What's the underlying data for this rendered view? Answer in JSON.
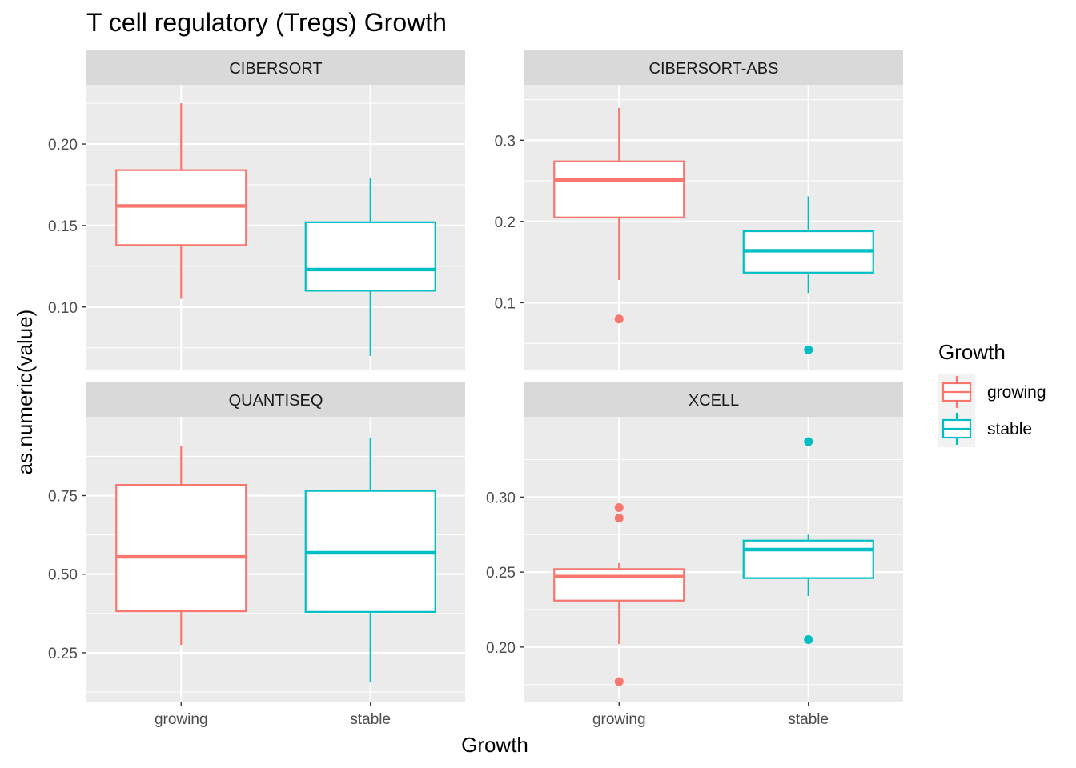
{
  "title": "T cell regulatory (Tregs) Growth",
  "xlabel": "Growth",
  "ylabel": "as.numeric(value)",
  "legend": {
    "title": "Growth",
    "position": "right",
    "items": [
      {
        "label": "growing",
        "color": "#F8766D"
      },
      {
        "label": "stable",
        "color": "#00BFC4"
      }
    ]
  },
  "chart_data": [
    {
      "type": "boxplot",
      "facet": "CIBERSORT",
      "categories": [
        "growing",
        "stable"
      ],
      "ylim": [
        0.0665,
        0.2285
      ],
      "yticks": [
        0.1,
        0.15,
        0.2
      ],
      "ytick_labels": [
        "0.10",
        "0.15",
        "0.20"
      ],
      "grid": true,
      "boxes": [
        {
          "category": "growing",
          "color": "#F8766D",
          "whisker_low": 0.105,
          "q1": 0.138,
          "median": 0.162,
          "q3": 0.184,
          "whisker_high": 0.225,
          "outliers": []
        },
        {
          "category": "stable",
          "color": "#00BFC4",
          "whisker_low": 0.07,
          "q1": 0.11,
          "median": 0.123,
          "q3": 0.152,
          "whisker_high": 0.179,
          "outliers": []
        }
      ]
    },
    {
      "type": "boxplot",
      "facet": "CIBERSORT-ABS",
      "categories": [
        "growing",
        "stable"
      ],
      "ylim": [
        0.0275,
        0.3525
      ],
      "yticks": [
        0.1,
        0.2,
        0.3
      ],
      "ytick_labels": [
        "0.1",
        "0.2",
        "0.3"
      ],
      "grid": true,
      "boxes": [
        {
          "category": "growing",
          "color": "#F8766D",
          "whisker_low": 0.128,
          "q1": 0.205,
          "median": 0.251,
          "q3": 0.274,
          "whisker_high": 0.34,
          "outliers": [
            0.08
          ]
        },
        {
          "category": "stable",
          "color": "#00BFC4",
          "whisker_low": 0.112,
          "q1": 0.137,
          "median": 0.164,
          "q3": 0.188,
          "whisker_high": 0.231,
          "outliers": [
            0.042
          ]
        }
      ]
    },
    {
      "type": "boxplot",
      "facet": "QUANTISEQ",
      "categories": [
        "growing",
        "stable"
      ],
      "ylim": [
        0.12,
        0.96
      ],
      "yticks": [
        0.25,
        0.5,
        0.75
      ],
      "ytick_labels": [
        "0.25",
        "0.50",
        "0.75"
      ],
      "grid": true,
      "boxes": [
        {
          "category": "growing",
          "color": "#F8766D",
          "whisker_low": 0.275,
          "q1": 0.382,
          "median": 0.555,
          "q3": 0.784,
          "whisker_high": 0.907,
          "outliers": []
        },
        {
          "category": "stable",
          "color": "#00BFC4",
          "whisker_low": 0.155,
          "q1": 0.38,
          "median": 0.568,
          "q3": 0.765,
          "whisker_high": 0.935,
          "outliers": []
        }
      ]
    },
    {
      "type": "boxplot",
      "facet": "XCELL",
      "categories": [
        "growing",
        "stable"
      ],
      "ylim": [
        0.169,
        0.345
      ],
      "yticks": [
        0.2,
        0.25,
        0.3
      ],
      "ytick_labels": [
        "0.20",
        "0.25",
        "0.30"
      ],
      "grid": true,
      "boxes": [
        {
          "category": "growing",
          "color": "#F8766D",
          "whisker_low": 0.202,
          "q1": 0.231,
          "median": 0.247,
          "q3": 0.252,
          "whisker_high": 0.256,
          "outliers": [
            0.177,
            0.286,
            0.293
          ]
        },
        {
          "category": "stable",
          "color": "#00BFC4",
          "whisker_low": 0.234,
          "q1": 0.246,
          "median": 0.265,
          "q3": 0.271,
          "whisker_high": 0.275,
          "outliers": [
            0.205,
            0.337
          ]
        }
      ]
    }
  ]
}
